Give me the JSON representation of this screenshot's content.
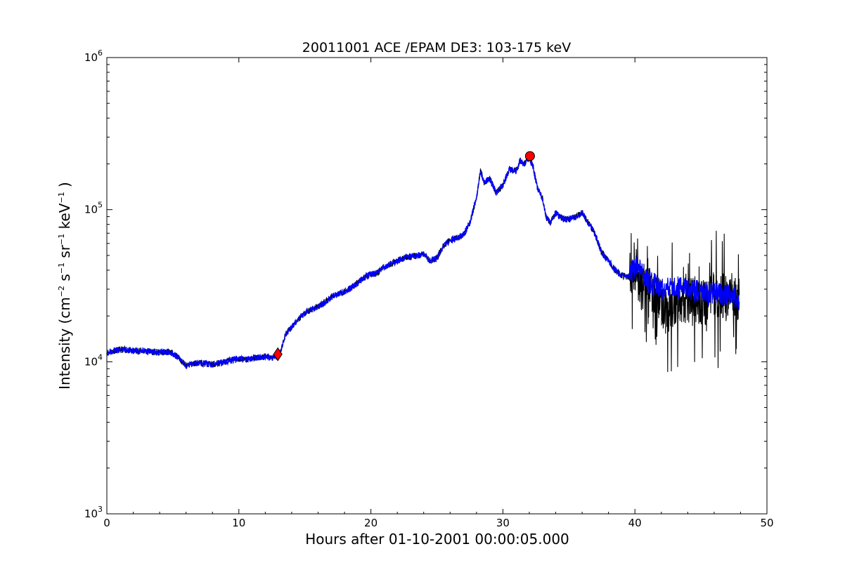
{
  "chart_data": {
    "type": "line",
    "title": "20011001 ACE /EPAM DE3: 103-175 keV",
    "xlabel": "Hours after 01-10-2001 00:00:05.000",
    "ylabel": {
      "prefix": "Intensity (cm",
      "sup1": "−2",
      "mid1": " s",
      "sup2": "−1",
      "mid2": " sr",
      "sup3": "−1",
      "mid3": " keV",
      "sup4": "−1",
      "suffix": " )"
    },
    "xlim": [
      0,
      50
    ],
    "ylim": [
      1000,
      1000000
    ],
    "yscale": "log",
    "grid": false,
    "x_ticks": [
      "0",
      "10",
      "20",
      "30",
      "40",
      "50"
    ],
    "y_ticks": [
      {
        "base": "10",
        "exp": "3"
      },
      {
        "base": "10",
        "exp": "4"
      },
      {
        "base": "10",
        "exp": "5"
      },
      {
        "base": "10",
        "exp": "6"
      }
    ],
    "series": [
      {
        "color": "#000000",
        "style": "raw",
        "x": [
          0,
          0.5,
          1,
          1.5,
          2,
          2.5,
          3,
          3.5,
          4,
          4.5,
          5,
          5.5,
          6,
          6.5,
          7,
          7.5,
          8,
          8.5,
          9,
          9.5,
          10,
          10.5,
          11,
          11.5,
          12,
          12.5,
          12.9,
          13.2,
          13.5,
          14,
          14.5,
          15,
          15.5,
          16,
          16.5,
          17,
          17.5,
          18,
          18.5,
          19,
          19.5,
          20,
          20.5,
          21,
          21.5,
          22,
          22.5,
          23,
          23.5,
          24,
          24.5,
          25,
          25.5,
          26,
          26.5,
          27,
          27.5,
          28,
          28.3,
          28.6,
          29,
          29.5,
          30,
          30.5,
          31,
          31.3,
          31.6,
          32,
          32.3,
          32.6,
          33,
          33.3,
          33.6,
          34,
          34.3,
          34.6,
          35,
          35.5,
          36,
          36.5,
          37,
          37.5,
          38,
          38.5,
          39,
          39.5,
          40,
          40.5,
          41,
          41.5,
          42,
          42.5,
          43,
          43.5,
          44,
          44.5,
          45,
          45.5,
          46,
          46.5,
          47,
          47.5,
          47.9
        ],
        "y": [
          11500,
          11800,
          12000,
          12000,
          11700,
          11800,
          11800,
          11600,
          11500,
          11600,
          11400,
          10500,
          9400,
          9700,
          9900,
          9700,
          9600,
          9800,
          10000,
          10300,
          10400,
          10300,
          10500,
          10700,
          10800,
          10600,
          10900,
          12000,
          15000,
          17000,
          19000,
          21000,
          22000,
          23000,
          24500,
          26500,
          28000,
          29000,
          30500,
          33000,
          36000,
          37500,
          38500,
          42000,
          44000,
          46000,
          48000,
          49000,
          50000,
          51000,
          46000,
          48000,
          58000,
          63000,
          65000,
          68000,
          82000,
          120000,
          180000,
          150000,
          160000,
          130000,
          145000,
          185000,
          180000,
          210000,
          200000,
          220000,
          190000,
          140000,
          118000,
          88000,
          82000,
          95000,
          90000,
          87000,
          86000,
          90000,
          96000,
          82000,
          68000,
          52000,
          46000,
          40000,
          37000,
          36000,
          42000,
          30000,
          35000,
          26000,
          23000,
          21000,
          24000,
          25000,
          25000,
          26000,
          24000,
          25000,
          28000,
          27000,
          28000,
          27000,
          25000
        ]
      },
      {
        "color": "#0000ff",
        "style": "smoothed",
        "x": [
          0,
          0.5,
          1,
          1.5,
          2,
          2.5,
          3,
          3.5,
          4,
          4.5,
          5,
          5.5,
          6,
          6.5,
          7,
          7.5,
          8,
          8.5,
          9,
          9.5,
          10,
          10.5,
          11,
          11.5,
          12,
          12.5,
          12.9,
          13.2,
          13.5,
          14,
          14.5,
          15,
          15.5,
          16,
          16.5,
          17,
          17.5,
          18,
          18.5,
          19,
          19.5,
          20,
          20.5,
          21,
          21.5,
          22,
          22.5,
          23,
          23.5,
          24,
          24.5,
          25,
          25.5,
          26,
          26.5,
          27,
          27.5,
          28,
          28.3,
          28.6,
          29,
          29.5,
          30,
          30.5,
          31,
          31.3,
          31.6,
          32,
          32.3,
          32.6,
          33,
          33.3,
          33.6,
          34,
          34.3,
          34.6,
          35,
          35.5,
          36,
          36.5,
          37,
          37.5,
          38,
          38.5,
          39,
          39.5,
          40,
          40.5,
          41,
          41.5,
          42,
          42.5,
          43,
          43.5,
          44,
          44.5,
          45,
          45.5,
          46,
          46.5,
          47,
          47.5,
          47.9
        ],
        "y": [
          11500,
          11800,
          12000,
          12000,
          11700,
          11800,
          11800,
          11600,
          11500,
          11600,
          11400,
          10500,
          9400,
          9700,
          9900,
          9700,
          9600,
          9800,
          10000,
          10300,
          10400,
          10300,
          10500,
          10700,
          10800,
          10600,
          10900,
          12000,
          15000,
          17000,
          19000,
          21000,
          22000,
          23000,
          24500,
          26500,
          28000,
          29000,
          30500,
          33000,
          36000,
          37500,
          38500,
          42000,
          44000,
          46000,
          48000,
          49000,
          50000,
          51000,
          46000,
          48000,
          58000,
          63000,
          65000,
          68000,
          82000,
          120000,
          180000,
          150000,
          160000,
          130000,
          145000,
          185000,
          180000,
          210000,
          200000,
          220000,
          190000,
          140000,
          118000,
          88000,
          82000,
          95000,
          90000,
          87000,
          86000,
          90000,
          96000,
          82000,
          68000,
          52000,
          46000,
          40000,
          37000,
          36000,
          42000,
          40000,
          34000,
          32000,
          30000,
          31000,
          32000,
          30000,
          31000,
          29000,
          30000,
          28000,
          29000,
          28000,
          27500,
          27000,
          25500
        ]
      }
    ],
    "markers": [
      {
        "shape": "diamond",
        "x": 12.95,
        "y": 11200,
        "color": "#ff0000"
      },
      {
        "shape": "circle",
        "x": 32.05,
        "y": 225000,
        "color": "#ff0000"
      }
    ]
  }
}
